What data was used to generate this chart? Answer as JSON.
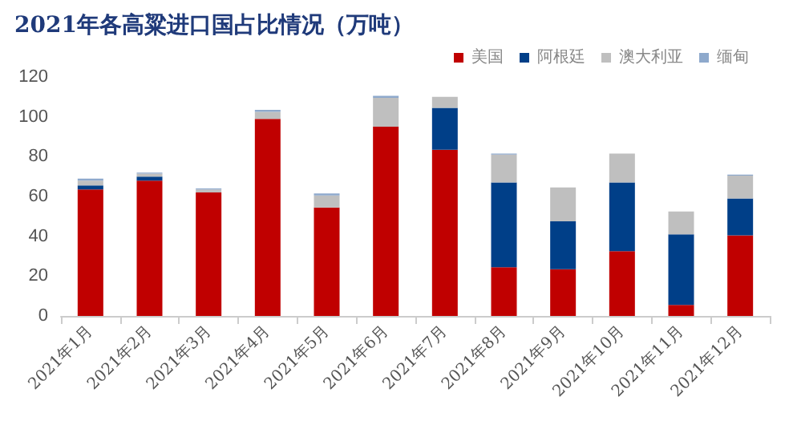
{
  "chart_data": {
    "type": "bar",
    "title": "2021年各高粱进口国占比情况（万吨）",
    "stacked": true,
    "legend": "top right",
    "grid": false,
    "categories": [
      "2021年1月",
      "2021年2月",
      "2021年3月",
      "2021年4月",
      "2021年5月",
      "2021年6月",
      "2021年7月",
      "2021年8月",
      "2021年9月",
      "2021年10月",
      "2021年11月",
      "2021年12月"
    ],
    "series": [
      {
        "name": "美国",
        "color": "#c00000",
        "values": [
          63.5,
          68,
          62,
          99,
          54.5,
          95,
          83.5,
          24.5,
          23.5,
          32.5,
          5.5,
          40.5
        ]
      },
      {
        "name": "阿根廷",
        "color": "#003f88",
        "values": [
          2,
          2,
          0,
          0,
          0,
          0,
          21,
          42.5,
          24,
          34.5,
          35.5,
          18.5
        ]
      },
      {
        "name": "澳大利亚",
        "color": "#bfbfbf",
        "values": [
          2.5,
          1.5,
          1.5,
          3.5,
          6,
          14.5,
          5.5,
          14,
          17,
          14.5,
          11.5,
          11.5
        ]
      },
      {
        "name": "缅甸",
        "color": "#8ea9cc",
        "values": [
          1,
          0.5,
          0.5,
          1,
          1,
          1,
          0,
          0.5,
          0,
          0,
          0,
          0.5
        ]
      }
    ],
    "ylim": [
      0,
      120
    ],
    "yticks": [
      0,
      20,
      40,
      60,
      80,
      100,
      120
    ]
  }
}
